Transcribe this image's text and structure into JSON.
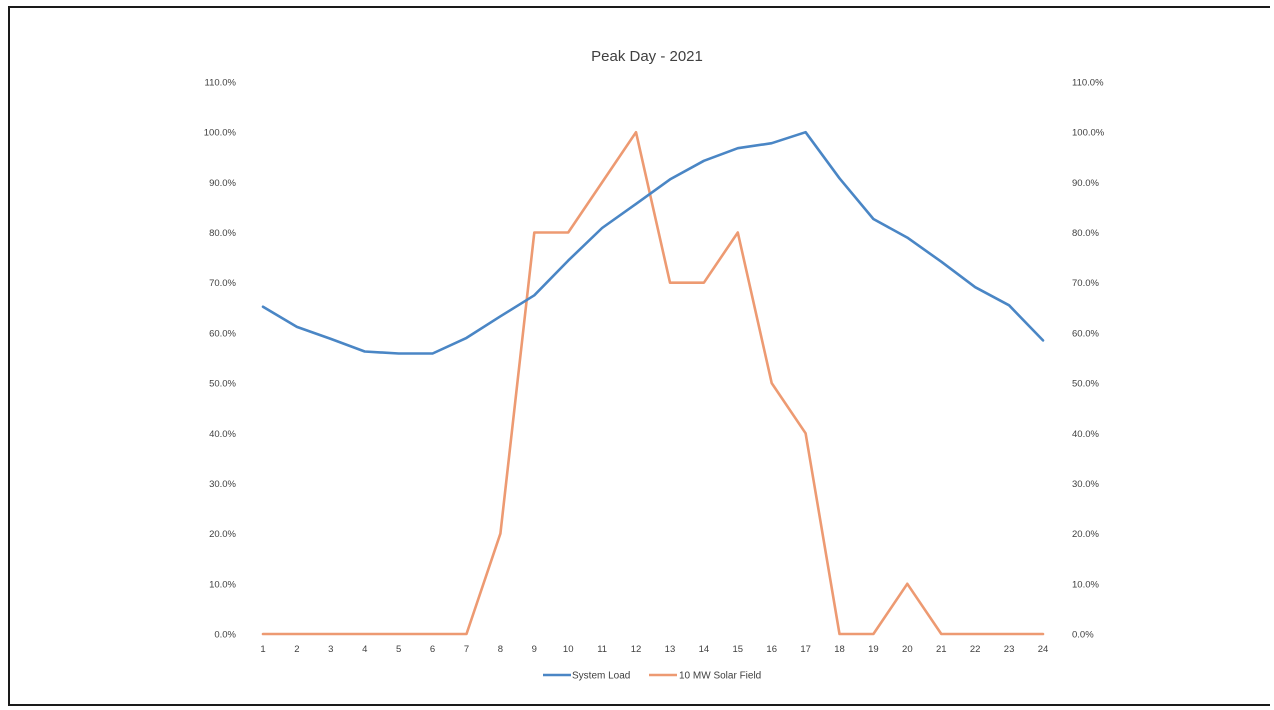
{
  "chart_data": {
    "type": "line",
    "title": "Peak Day - 2021",
    "xlabel": "",
    "ylabel": "",
    "x": [
      1,
      2,
      3,
      4,
      5,
      6,
      7,
      8,
      9,
      10,
      11,
      12,
      13,
      14,
      15,
      16,
      17,
      18,
      19,
      20,
      21,
      22,
      23,
      24
    ],
    "ylim": [
      0,
      110
    ],
    "y_ticks": [
      "0.0%",
      "10.0%",
      "20.0%",
      "30.0%",
      "40.0%",
      "50.0%",
      "60.0%",
      "70.0%",
      "80.0%",
      "90.0%",
      "100.0%",
      "110.0%"
    ],
    "y_tick_values": [
      0,
      10,
      20,
      30,
      40,
      50,
      60,
      70,
      80,
      90,
      100,
      110
    ],
    "secondary_y_ticks": [
      "0.0%",
      "10.0%",
      "20.0%",
      "30.0%",
      "40.0%",
      "50.0%",
      "60.0%",
      "70.0%",
      "80.0%",
      "90.0%",
      "100.0%",
      "110.0%"
    ],
    "grid": false,
    "legend_position": "bottom",
    "series": [
      {
        "name": "System Load",
        "color": "#4a86c5",
        "values": [
          65.2,
          61.2,
          58.8,
          56.3,
          55.9,
          55.9,
          59.0,
          63.3,
          67.5,
          74.4,
          80.9,
          85.7,
          90.6,
          94.3,
          96.8,
          97.8,
          100.0,
          90.8,
          82.7,
          79.0,
          74.2,
          69.1,
          65.5,
          58.5
        ]
      },
      {
        "name": "10 MW Solar Field",
        "color": "#ed9a72",
        "values": [
          0,
          0,
          0,
          0,
          0,
          0,
          0,
          20,
          80,
          80,
          90,
          100,
          70,
          70,
          80,
          50,
          40,
          0,
          0,
          10,
          0,
          0,
          0,
          0
        ]
      }
    ]
  }
}
